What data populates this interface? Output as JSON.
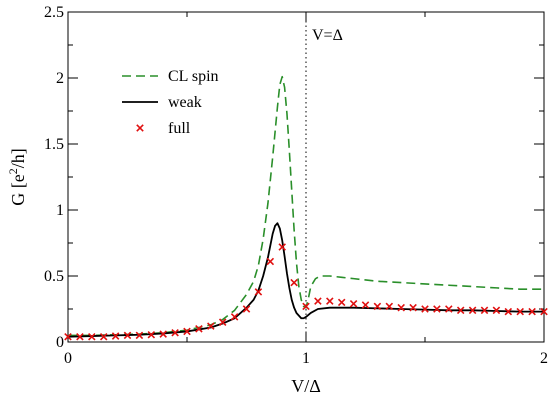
{
  "chart_data": {
    "type": "line",
    "xlabel": "V/Δ",
    "ylabel_main": "G [e",
    "ylabel_sup": "2",
    "ylabel_tail": "/h]",
    "xlim": [
      0,
      2
    ],
    "ylim": [
      0,
      2.5
    ],
    "xticks": [
      0,
      1,
      2
    ],
    "xtick_labels": [
      "0",
      "1",
      "2"
    ],
    "yticks": [
      0,
      0.5,
      1,
      1.5,
      2,
      2.5
    ],
    "ytick_labels": [
      "0",
      "0.5",
      "1",
      "1.5",
      "2",
      "2.5"
    ],
    "grid": false,
    "legend_position": "upper-left",
    "annotation": {
      "text": "V=Δ",
      "x": 1
    },
    "series": [
      {
        "name": "CL spin",
        "style": "dashed",
        "color": "#2a8f2a",
        "x": [
          0,
          0.1,
          0.2,
          0.3,
          0.4,
          0.5,
          0.6,
          0.65,
          0.7,
          0.75,
          0.78,
          0.8,
          0.82,
          0.84,
          0.86,
          0.88,
          0.89,
          0.9,
          0.91,
          0.92,
          0.93,
          0.94,
          0.95,
          0.96,
          0.97,
          0.98,
          0.99,
          1.0,
          1.01,
          1.02,
          1.04,
          1.06,
          1.1,
          1.15,
          1.2,
          1.3,
          1.4,
          1.5,
          1.6,
          1.7,
          1.8,
          1.9,
          2.0
        ],
        "y": [
          0.05,
          0.05,
          0.055,
          0.06,
          0.07,
          0.09,
          0.13,
          0.17,
          0.24,
          0.36,
          0.46,
          0.58,
          0.78,
          1.05,
          1.4,
          1.78,
          1.95,
          2.01,
          1.93,
          1.73,
          1.45,
          1.15,
          0.85,
          0.6,
          0.42,
          0.32,
          0.27,
          0.26,
          0.33,
          0.42,
          0.48,
          0.5,
          0.5,
          0.49,
          0.48,
          0.46,
          0.45,
          0.44,
          0.43,
          0.42,
          0.41,
          0.4,
          0.4
        ]
      },
      {
        "name": "weak",
        "style": "solid",
        "color": "#000000",
        "x": [
          0,
          0.1,
          0.2,
          0.3,
          0.4,
          0.5,
          0.6,
          0.65,
          0.7,
          0.75,
          0.78,
          0.8,
          0.82,
          0.84,
          0.85,
          0.86,
          0.87,
          0.88,
          0.89,
          0.9,
          0.91,
          0.92,
          0.93,
          0.94,
          0.95,
          0.96,
          0.97,
          0.98,
          0.99,
          1.0,
          1.02,
          1.05,
          1.1,
          1.2,
          1.3,
          1.4,
          1.5,
          1.6,
          1.7,
          1.8,
          1.9,
          2.0
        ],
        "y": [
          0.04,
          0.045,
          0.05,
          0.055,
          0.065,
          0.08,
          0.11,
          0.14,
          0.18,
          0.26,
          0.32,
          0.39,
          0.5,
          0.64,
          0.73,
          0.82,
          0.88,
          0.9,
          0.86,
          0.77,
          0.65,
          0.52,
          0.41,
          0.32,
          0.26,
          0.22,
          0.2,
          0.18,
          0.18,
          0.19,
          0.22,
          0.25,
          0.26,
          0.26,
          0.255,
          0.25,
          0.245,
          0.24,
          0.24,
          0.235,
          0.23,
          0.23
        ]
      },
      {
        "name": "full",
        "style": "markers-x",
        "color": "#e01010",
        "x": [
          0.0,
          0.05,
          0.1,
          0.15,
          0.2,
          0.25,
          0.3,
          0.35,
          0.4,
          0.45,
          0.5,
          0.55,
          0.6,
          0.65,
          0.7,
          0.75,
          0.8,
          0.85,
          0.9,
          0.95,
          1.0,
          1.05,
          1.1,
          1.15,
          1.2,
          1.25,
          1.3,
          1.35,
          1.4,
          1.45,
          1.5,
          1.55,
          1.6,
          1.65,
          1.7,
          1.75,
          1.8,
          1.85,
          1.9,
          1.95,
          2.0
        ],
        "y": [
          0.04,
          0.04,
          0.04,
          0.04,
          0.045,
          0.05,
          0.05,
          0.055,
          0.06,
          0.07,
          0.08,
          0.1,
          0.12,
          0.15,
          0.19,
          0.25,
          0.38,
          0.61,
          0.72,
          0.45,
          0.27,
          0.31,
          0.31,
          0.3,
          0.29,
          0.28,
          0.27,
          0.27,
          0.26,
          0.26,
          0.25,
          0.25,
          0.25,
          0.24,
          0.24,
          0.24,
          0.24,
          0.23,
          0.23,
          0.23,
          0.23
        ]
      }
    ]
  }
}
